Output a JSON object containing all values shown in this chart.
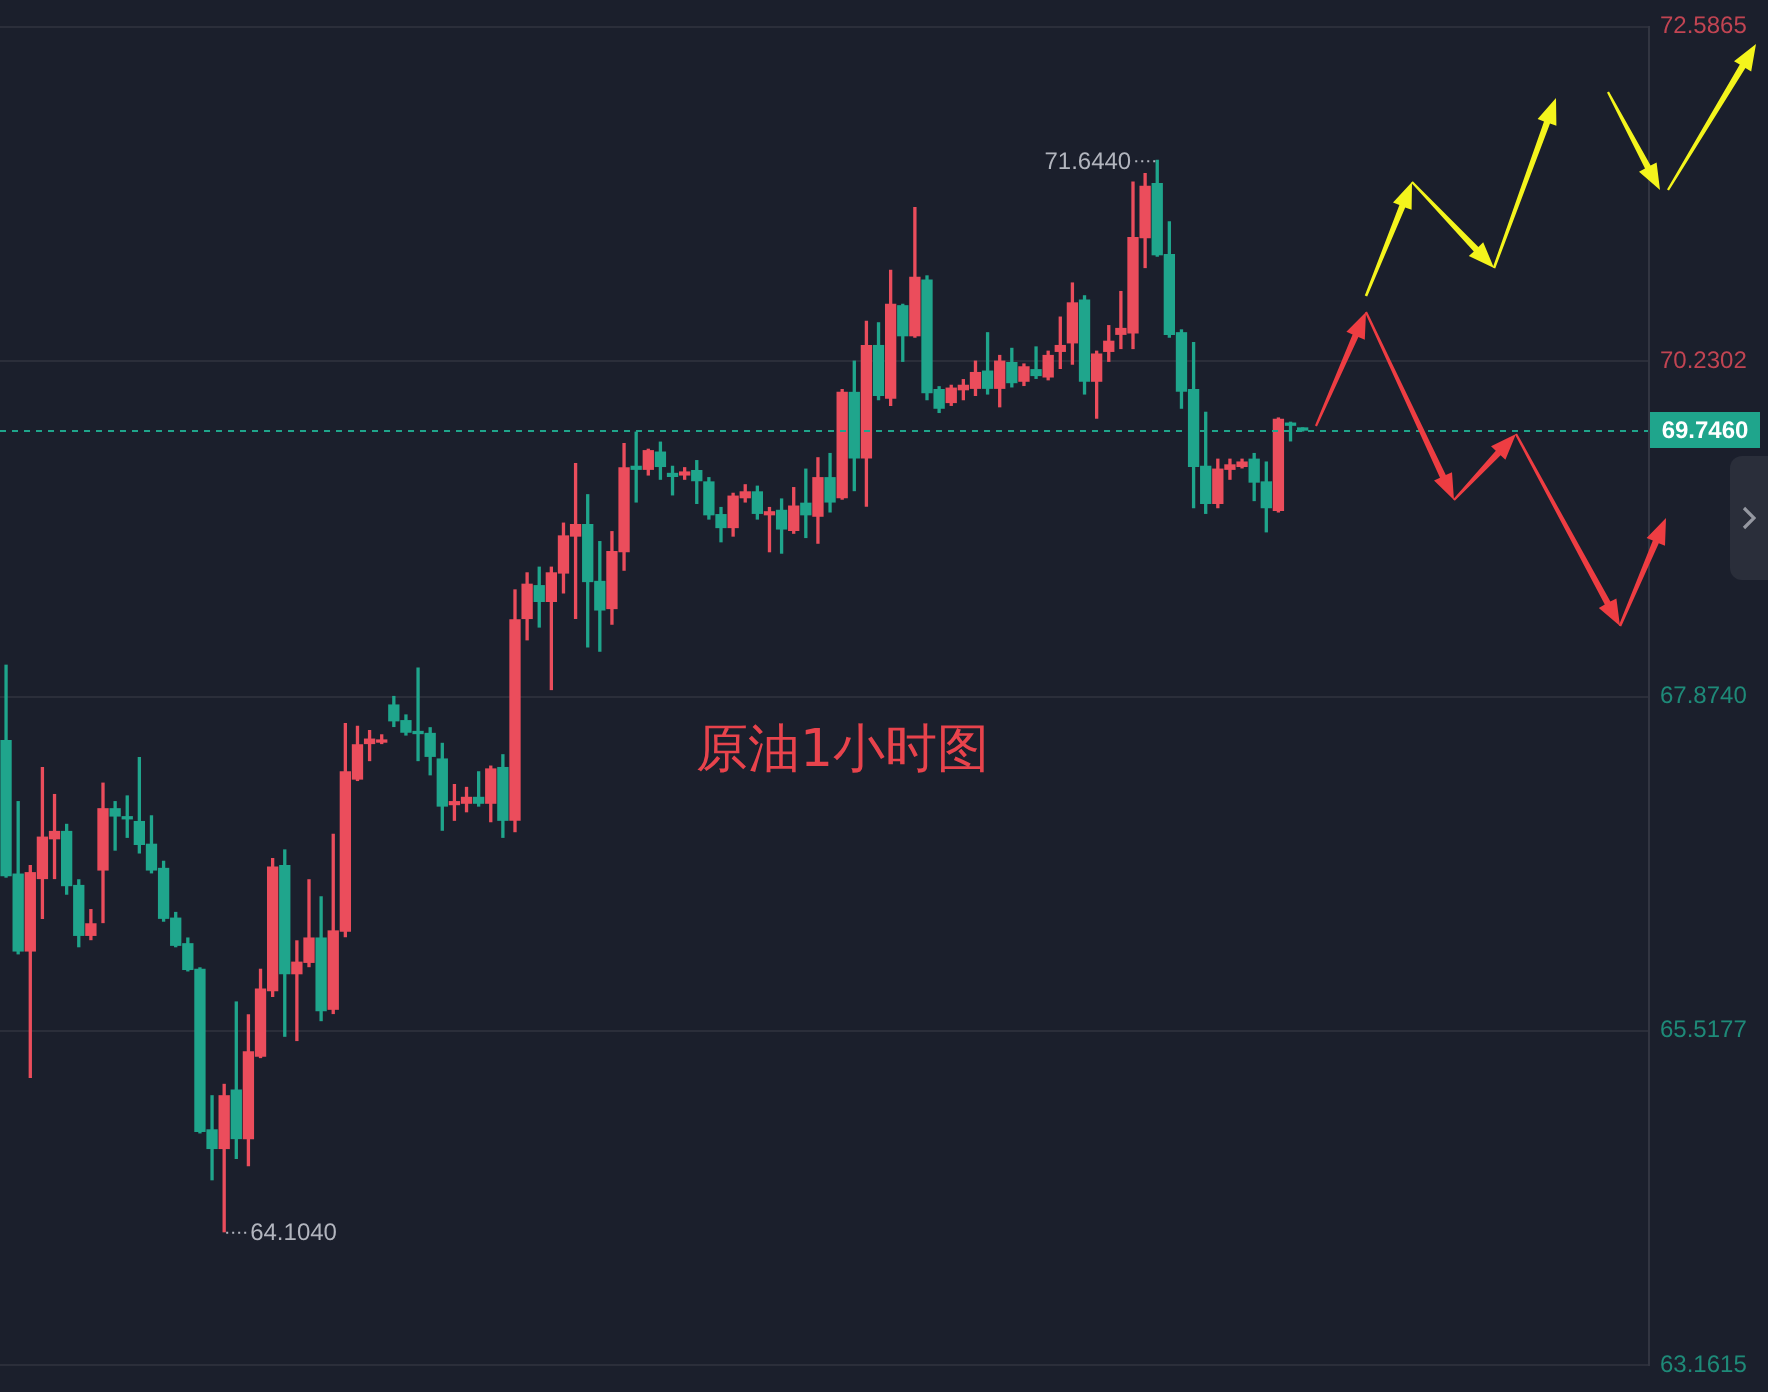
{
  "chart_data": {
    "type": "candlestick",
    "title": "原油1小时图",
    "categories": [
      null,
      null,
      null,
      null,
      null,
      null,
      null,
      null,
      null,
      null,
      null,
      null,
      null,
      null,
      null,
      null,
      null,
      null,
      null,
      null,
      null,
      null,
      null,
      null,
      null,
      null,
      null,
      null,
      null,
      null,
      null,
      null,
      null,
      null,
      null,
      null,
      null,
      null,
      null,
      null,
      null,
      null,
      null,
      null,
      null,
      null,
      null,
      null,
      null,
      null,
      null,
      null,
      null,
      null,
      null,
      null,
      null,
      null,
      null,
      null,
      null,
      null,
      null,
      null,
      null,
      null,
      null,
      null,
      null,
      null,
      null,
      null,
      null,
      null,
      null,
      null,
      null,
      null,
      null,
      null,
      null,
      null,
      null,
      null,
      null,
      null,
      null,
      null,
      null,
      null,
      null,
      null,
      null,
      null,
      null,
      null,
      null,
      null,
      null,
      null,
      null,
      null,
      null,
      null,
      null,
      null,
      null,
      null,
      null,
      null,
      null,
      null,
      null,
      null,
      null,
      null,
      null,
      null,
      null,
      null,
      null,
      null,
      null,
      null,
      null,
      null,
      null,
      null,
      null,
      null,
      null,
      null,
      null,
      null,
      null,
      null
    ],
    "ohlc": [
      [
        67.56,
        68.09,
        66.6,
        66.61
      ],
      [
        66.62,
        67.13,
        66.06,
        66.08
      ],
      [
        66.08,
        66.68,
        65.19,
        66.63
      ],
      [
        66.59,
        67.37,
        66.31,
        66.88
      ],
      [
        66.87,
        67.18,
        66.59,
        66.92
      ],
      [
        66.92,
        66.97,
        66.48,
        66.54
      ],
      [
        66.54,
        66.58,
        66.11,
        66.19
      ],
      [
        66.19,
        66.37,
        66.16,
        66.27
      ],
      [
        66.65,
        67.26,
        66.28,
        67.08
      ],
      [
        67.08,
        67.13,
        66.79,
        67.03
      ],
      [
        67.02,
        67.17,
        66.88,
        67.01
      ],
      [
        66.99,
        67.44,
        66.77,
        66.83
      ],
      [
        66.83,
        67.03,
        66.63,
        66.65
      ],
      [
        66.66,
        66.71,
        66.29,
        66.31
      ],
      [
        66.31,
        66.35,
        66.11,
        66.12
      ],
      [
        66.13,
        66.17,
        65.94,
        65.95
      ],
      [
        65.95,
        65.96,
        64.8,
        64.81
      ],
      [
        64.82,
        65.06,
        64.47,
        64.69
      ],
      [
        64.69,
        65.14,
        64.104,
        65.06
      ],
      [
        65.1,
        65.72,
        64.62,
        64.76
      ],
      [
        64.76,
        65.63,
        64.57,
        65.37
      ],
      [
        65.34,
        65.95,
        65.33,
        65.81
      ],
      [
        65.8,
        66.73,
        65.76,
        66.67
      ],
      [
        66.68,
        66.79,
        65.48,
        65.92
      ],
      [
        65.92,
        66.15,
        65.45,
        66.0
      ],
      [
        66.0,
        66.58,
        65.97,
        66.17
      ],
      [
        66.17,
        66.46,
        65.59,
        65.66
      ],
      [
        65.67,
        66.9,
        65.64,
        66.22
      ],
      [
        66.22,
        67.68,
        66.18,
        67.34
      ],
      [
        67.29,
        67.66,
        67.28,
        67.53
      ],
      [
        67.54,
        67.63,
        67.42,
        67.57
      ],
      [
        67.55,
        67.6,
        67.54,
        67.56
      ],
      [
        67.81,
        67.87,
        67.66,
        67.7
      ],
      [
        67.7,
        67.74,
        67.6,
        67.62
      ],
      [
        67.62,
        68.07,
        67.42,
        67.61
      ],
      [
        67.61,
        67.65,
        67.32,
        67.45
      ],
      [
        67.43,
        67.54,
        66.93,
        67.1
      ],
      [
        67.11,
        67.25,
        67.0,
        67.13
      ],
      [
        67.12,
        67.23,
        67.06,
        67.16
      ],
      [
        67.16,
        67.34,
        67.1,
        67.12
      ],
      [
        67.12,
        67.38,
        66.99,
        67.36
      ],
      [
        67.37,
        67.46,
        66.88,
        67.0
      ],
      [
        67.0,
        68.62,
        66.92,
        68.41
      ],
      [
        68.42,
        68.74,
        68.27,
        68.66
      ],
      [
        68.65,
        68.78,
        68.36,
        68.54
      ],
      [
        68.54,
        68.78,
        67.92,
        68.74
      ],
      [
        68.74,
        69.09,
        68.6,
        69.0
      ],
      [
        69.0,
        69.51,
        68.42,
        69.08
      ],
      [
        69.08,
        69.29,
        68.22,
        68.68
      ],
      [
        68.68,
        68.96,
        68.19,
        68.48
      ],
      [
        68.49,
        69.03,
        68.38,
        68.89
      ],
      [
        68.89,
        69.65,
        68.76,
        69.48
      ],
      [
        69.49,
        69.73,
        69.24,
        69.47
      ],
      [
        69.47,
        69.61,
        69.43,
        69.6
      ],
      [
        69.59,
        69.66,
        69.4,
        69.49
      ],
      [
        69.44,
        69.49,
        69.29,
        69.42
      ],
      [
        69.43,
        69.48,
        69.4,
        69.45
      ],
      [
        69.46,
        69.53,
        69.23,
        69.39
      ],
      [
        69.38,
        69.41,
        69.12,
        69.15
      ],
      [
        69.15,
        69.2,
        68.96,
        69.06
      ],
      [
        69.06,
        69.3,
        69.0,
        69.28
      ],
      [
        69.27,
        69.36,
        69.24,
        69.31
      ],
      [
        69.31,
        69.35,
        69.12,
        69.16
      ],
      [
        69.15,
        69.2,
        68.89,
        69.17
      ],
      [
        69.18,
        69.26,
        68.88,
        69.05
      ],
      [
        69.04,
        69.34,
        69.02,
        69.21
      ],
      [
        69.23,
        69.47,
        68.99,
        69.15
      ],
      [
        69.14,
        69.55,
        68.95,
        69.41
      ],
      [
        69.41,
        69.58,
        69.17,
        69.24
      ],
      [
        69.27,
        70.03,
        69.26,
        70.01
      ],
      [
        70.01,
        70.23,
        69.32,
        69.55
      ],
      [
        69.55,
        70.51,
        69.21,
        70.34
      ],
      [
        70.34,
        70.5,
        69.96,
        69.99
      ],
      [
        69.97,
        70.87,
        69.92,
        70.63
      ],
      [
        70.62,
        70.63,
        70.23,
        70.41
      ],
      [
        70.41,
        71.31,
        70.4,
        70.82
      ],
      [
        70.8,
        70.83,
        69.96,
        70.01
      ],
      [
        70.03,
        70.05,
        69.87,
        69.9
      ],
      [
        69.94,
        70.06,
        69.92,
        70.04
      ],
      [
        70.03,
        70.1,
        69.96,
        70.06
      ],
      [
        70.04,
        70.23,
        69.99,
        70.15
      ],
      [
        70.16,
        70.43,
        70.0,
        70.04
      ],
      [
        70.04,
        70.27,
        69.91,
        70.23
      ],
      [
        70.22,
        70.32,
        70.05,
        70.08
      ],
      [
        70.09,
        70.21,
        70.06,
        70.19
      ],
      [
        70.17,
        70.33,
        70.11,
        70.13
      ],
      [
        70.12,
        70.3,
        70.1,
        70.27
      ],
      [
        70.3,
        70.54,
        70.18,
        70.34
      ],
      [
        70.36,
        70.78,
        70.21,
        70.64
      ],
      [
        70.66,
        70.69,
        70.0,
        70.09
      ],
      [
        70.09,
        70.3,
        69.83,
        70.28
      ],
      [
        70.3,
        70.48,
        70.23,
        70.37
      ],
      [
        70.42,
        70.72,
        70.32,
        70.46
      ],
      [
        70.43,
        71.49,
        70.32,
        71.1
      ],
      [
        71.1,
        71.55,
        70.89,
        71.46
      ],
      [
        71.48,
        71.644,
        70.97,
        70.98
      ],
      [
        70.98,
        71.21,
        70.4,
        70.42
      ],
      [
        70.43,
        70.45,
        69.9,
        70.02
      ],
      [
        70.03,
        70.36,
        69.2,
        69.49
      ],
      [
        69.49,
        69.87,
        69.16,
        69.23
      ],
      [
        69.23,
        69.54,
        69.2,
        69.47
      ],
      [
        69.47,
        69.54,
        69.4,
        69.5
      ],
      [
        69.49,
        69.54,
        69.48,
        69.52
      ],
      [
        69.54,
        69.58,
        69.25,
        69.38
      ],
      [
        69.38,
        69.52,
        69.03,
        69.2
      ],
      [
        69.18,
        69.83,
        69.17,
        69.82
      ],
      [
        69.79,
        69.8,
        69.67,
        69.78
      ],
      [
        69.76,
        69.76,
        69.74,
        69.746
      ],
      null,
      null,
      null,
      null,
      null,
      null,
      null,
      null,
      null,
      null,
      null,
      null,
      null,
      null,
      null,
      null,
      null,
      null,
      null,
      null,
      null,
      null,
      null,
      null,
      null,
      null,
      null,
      null
    ],
    "colors": [
      "#1fa58c",
      "#1fa58c",
      "#eb4d5c",
      "#eb4d5c",
      "#eb4d5c",
      "#1fa58c",
      "#1fa58c",
      "#eb4d5c",
      "#eb4d5c",
      "#1fa58c",
      "#1fa58c",
      "#1fa58c",
      "#1fa58c",
      "#1fa58c",
      "#1fa58c",
      "#1fa58c",
      "#1fa58c",
      "#1fa58c",
      "#eb4d5c",
      "#1fa58c",
      "#eb4d5c",
      "#eb4d5c",
      "#eb4d5c",
      "#1fa58c",
      "#eb4d5c",
      "#eb4d5c",
      "#1fa58c",
      "#eb4d5c",
      "#eb4d5c",
      "#eb4d5c",
      "#eb4d5c",
      "#eb4d5c",
      "#1fa58c",
      "#1fa58c",
      "#1fa58c",
      "#1fa58c",
      "#1fa58c",
      "#eb4d5c",
      "#eb4d5c",
      "#1fa58c",
      "#eb4d5c",
      "#1fa58c",
      "#eb4d5c",
      "#eb4d5c",
      "#1fa58c",
      "#eb4d5c",
      "#eb4d5c",
      "#eb4d5c",
      "#1fa58c",
      "#1fa58c",
      "#eb4d5c",
      "#eb4d5c",
      "#1fa58c",
      "#eb4d5c",
      "#1fa58c",
      "#1fa58c",
      "#eb4d5c",
      "#1fa58c",
      "#1fa58c",
      "#1fa58c",
      "#eb4d5c",
      "#eb4d5c",
      "#1fa58c",
      "#eb4d5c",
      "#1fa58c",
      "#eb4d5c",
      "#1fa58c",
      "#eb4d5c",
      "#1fa58c",
      "#eb4d5c",
      "#1fa58c",
      "#eb4d5c",
      "#1fa58c",
      "#eb4d5c",
      "#1fa58c",
      "#eb4d5c",
      "#1fa58c",
      "#1fa58c",
      "#eb4d5c",
      "#eb4d5c",
      "#eb4d5c",
      "#1fa58c",
      "#eb4d5c",
      "#1fa58c",
      "#eb4d5c",
      "#1fa58c",
      "#eb4d5c",
      "#eb4d5c",
      "#eb4d5c",
      "#1fa58c",
      "#eb4d5c",
      "#eb4d5c",
      "#eb4d5c",
      "#eb4d5c",
      "#eb4d5c",
      "#1fa58c",
      "#1fa58c",
      "#1fa58c",
      "#1fa58c",
      "#1fa58c",
      "#eb4d5c",
      "#eb4d5c",
      "#eb4d5c",
      "#1fa58c",
      "#1fa58c",
      "#eb4d5c",
      "#1fa58c",
      "#1fa58c",
      null,
      null,
      null,
      null,
      null,
      null,
      null,
      null,
      null,
      null,
      null,
      null,
      null,
      null,
      null,
      null,
      null,
      null,
      null,
      null,
      null,
      null,
      null,
      null,
      null,
      null,
      null,
      null
    ],
    "ylim": [
      63.1615,
      72.5865
    ],
    "yticks": [
      63.1615,
      65.5177,
      {
        "value": 67.874,
        "label": "67.8740"
      },
      70.2302,
      72.5865
    ],
    "ref_lines": [
      {
        "axis": "y",
        "value": 69.746,
        "label": "69.7460",
        "color": "#1fa58c",
        "line_style": "dashed"
      }
    ],
    "annotations": [
      "71.6440",
      "64.1040"
    ],
    "grid": "y",
    "tick_labels": "y"
  }
}
